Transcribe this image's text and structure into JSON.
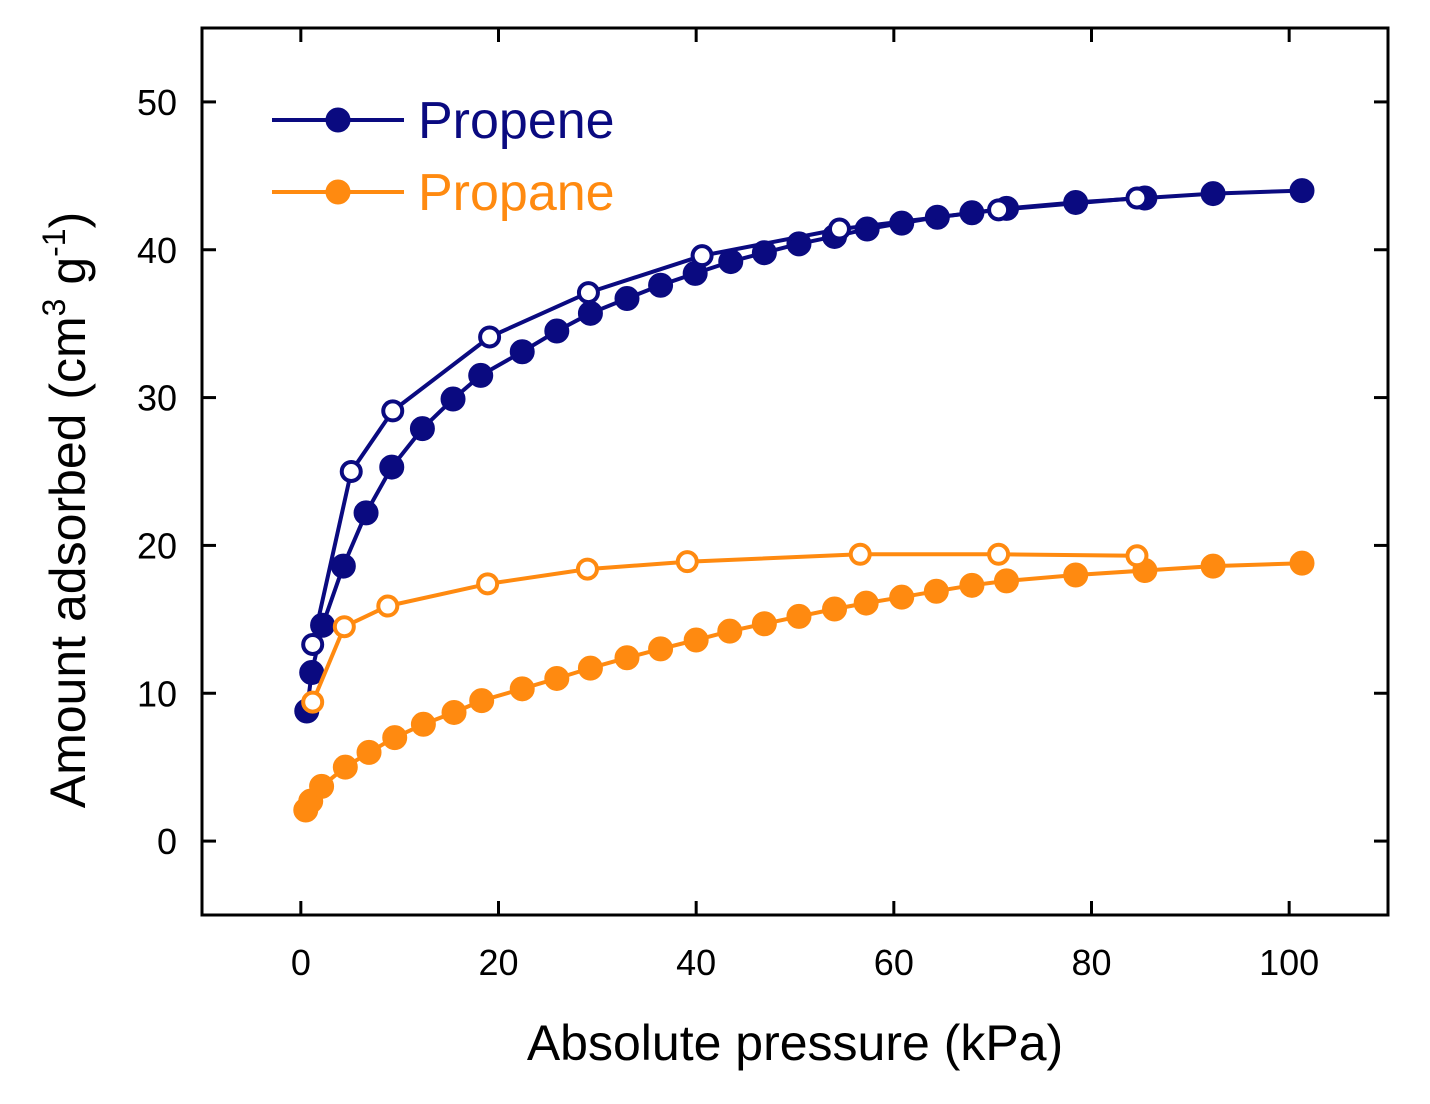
{
  "chart_data": {
    "type": "line",
    "title": "",
    "xlabel": "Absolute pressure (kPa)",
    "ylabel": {
      "prefix": "Amount adsorbed (cm",
      "sup1": "3",
      "mid": " g",
      "sup2": "-1",
      "suffix": ")"
    },
    "xlim": [
      -10,
      110
    ],
    "ylim": [
      -5,
      55
    ],
    "xticks": [
      0,
      20,
      40,
      60,
      80,
      100
    ],
    "yticks": [
      0,
      10,
      20,
      30,
      40,
      50
    ],
    "xtick_labels": [
      "0",
      "20",
      "40",
      "60",
      "80",
      "100"
    ],
    "ytick_labels": [
      "0",
      "10",
      "20",
      "30",
      "40",
      "50"
    ],
    "legend": {
      "position": "top-left"
    },
    "series": [
      {
        "name": "Propene",
        "color": "#0a0a80",
        "branch": "adsorption",
        "marker": "filled-circle",
        "show_in_legend": true,
        "x": [
          0.6,
          1.1,
          2.2,
          4.3,
          6.6,
          9.2,
          12.3,
          15.4,
          18.2,
          22.4,
          25.9,
          29.3,
          33.0,
          36.4,
          39.9,
          43.5,
          46.9,
          50.4,
          54.0,
          57.3,
          60.8,
          64.4,
          67.9,
          71.4,
          78.4,
          85.4,
          92.3,
          101.3
        ],
        "y": [
          8.8,
          11.4,
          14.6,
          18.6,
          22.2,
          25.3,
          27.9,
          29.9,
          31.5,
          33.1,
          34.5,
          35.7,
          36.7,
          37.6,
          38.4,
          39.2,
          39.8,
          40.4,
          40.9,
          41.4,
          41.8,
          42.2,
          42.5,
          42.8,
          43.2,
          43.5,
          43.8,
          44.0
        ]
      },
      {
        "name": "Propene desorption",
        "color": "#0a0a80",
        "branch": "desorption",
        "marker": "open-circle",
        "show_in_legend": false,
        "x": [
          84.6,
          70.6,
          54.5,
          40.6,
          29.1,
          19.1,
          9.3,
          5.1,
          1.2
        ],
        "y": [
          43.5,
          42.7,
          41.4,
          39.6,
          37.1,
          34.1,
          29.1,
          25.0,
          13.3
        ]
      },
      {
        "name": "Propane",
        "color": "#ff8a10",
        "branch": "adsorption",
        "marker": "filled-circle",
        "show_in_legend": true,
        "x": [
          0.5,
          1.0,
          2.1,
          4.5,
          6.9,
          9.5,
          12.4,
          15.5,
          18.3,
          22.4,
          25.9,
          29.3,
          33.0,
          36.4,
          40.0,
          43.4,
          46.9,
          50.4,
          54.0,
          57.2,
          60.8,
          64.3,
          67.9,
          71.4,
          78.4,
          85.4,
          92.3,
          101.3
        ],
        "y": [
          2.1,
          2.7,
          3.7,
          5.0,
          6.0,
          7.0,
          7.9,
          8.7,
          9.5,
          10.3,
          11.0,
          11.7,
          12.4,
          13.0,
          13.6,
          14.2,
          14.7,
          15.2,
          15.7,
          16.1,
          16.5,
          16.9,
          17.3,
          17.6,
          18.0,
          18.3,
          18.6,
          18.8
        ]
      },
      {
        "name": "Propane desorption",
        "color": "#ff8a10",
        "branch": "desorption",
        "marker": "open-circle",
        "show_in_legend": false,
        "x": [
          84.6,
          70.6,
          56.6,
          39.1,
          29.0,
          18.9,
          8.8,
          4.4,
          1.2
        ],
        "y": [
          19.3,
          19.4,
          19.4,
          18.9,
          18.4,
          17.4,
          15.9,
          14.5,
          9.4
        ]
      }
    ]
  }
}
